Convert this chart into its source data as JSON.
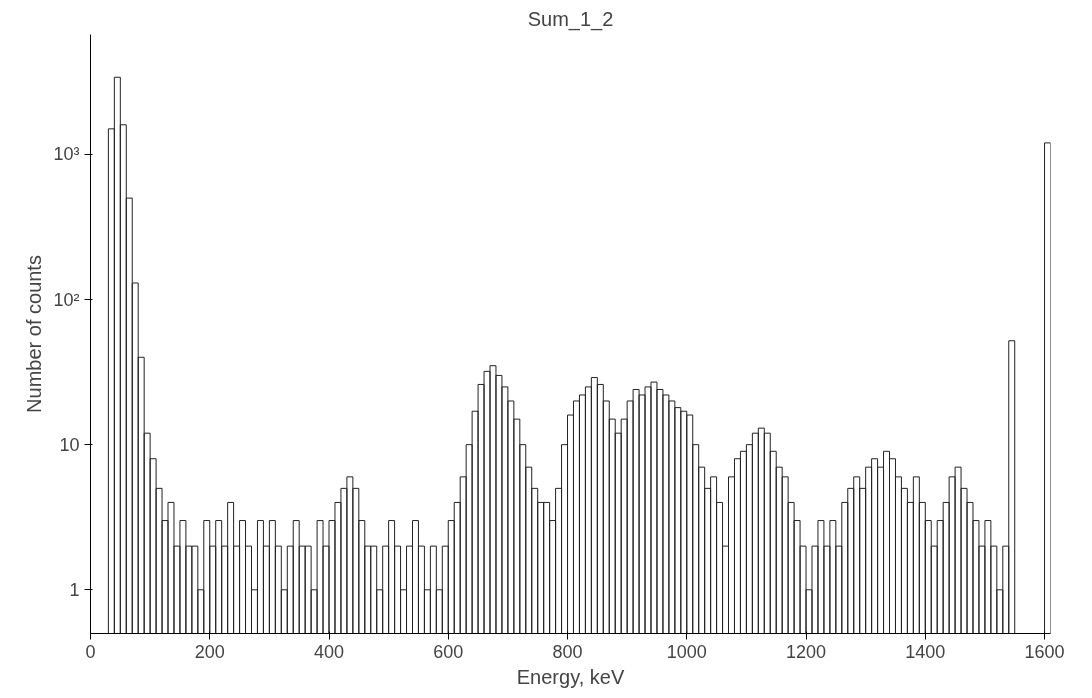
{
  "chart_data": {
    "type": "histogram",
    "title": "Sum_1_2",
    "xlabel": "Energy, keV",
    "ylabel": "Number of counts",
    "color": "#222222",
    "log": "y",
    "grid": false,
    "bins": [
      0,
      10,
      20,
      30,
      40,
      50,
      60,
      70,
      80,
      90,
      100,
      110,
      120,
      130,
      140,
      150,
      160,
      170,
      180,
      190,
      200,
      210,
      220,
      230,
      240,
      250,
      260,
      270,
      280,
      290,
      300,
      310,
      320,
      330,
      340,
      350,
      360,
      370,
      380,
      390,
      400,
      410,
      420,
      430,
      440,
      450,
      460,
      470,
      480,
      490,
      500,
      510,
      520,
      530,
      540,
      550,
      560,
      570,
      580,
      590,
      600,
      610,
      620,
      630,
      640,
      650,
      660,
      670,
      680,
      690,
      700,
      710,
      720,
      730,
      740,
      750,
      760,
      770,
      780,
      790,
      800,
      810,
      820,
      830,
      840,
      850,
      860,
      870,
      880,
      890,
      900,
      910,
      920,
      930,
      940,
      950,
      960,
      970,
      980,
      990,
      1000,
      1010,
      1020,
      1030,
      1040,
      1050,
      1060,
      1070,
      1080,
      1090,
      1100,
      1110,
      1120,
      1130,
      1140,
      1150,
      1160,
      1170,
      1180,
      1190,
      1200,
      1210,
      1220,
      1230,
      1240,
      1250,
      1260,
      1270,
      1280,
      1290,
      1300,
      1310,
      1320,
      1330,
      1340,
      1350,
      1360,
      1370,
      1380,
      1390,
      1400,
      1410,
      1420,
      1430,
      1440,
      1450,
      1460,
      1470,
      1480,
      1490,
      1500,
      1510,
      1520,
      1530,
      1540,
      1550,
      1560,
      1570,
      1580,
      1590,
      1600,
      1610
    ],
    "values": [
      null,
      null,
      null,
      1500,
      3400,
      1600,
      500,
      130,
      40,
      12,
      8,
      5,
      3,
      4,
      2,
      3,
      2,
      2,
      1,
      3,
      2,
      3,
      2,
      4,
      2,
      3,
      2,
      1,
      3,
      2,
      3,
      2,
      1,
      2,
      3,
      2,
      2,
      1,
      3,
      2,
      3,
      4,
      5,
      6,
      5,
      3,
      2,
      2,
      1,
      2,
      3,
      2,
      1,
      2,
      3,
      2,
      1,
      2,
      1,
      2,
      3,
      4,
      6,
      10,
      17,
      26,
      32,
      35,
      30,
      25,
      20,
      15,
      10,
      7,
      5,
      4,
      4,
      3,
      5,
      10,
      16,
      20,
      22,
      25,
      29,
      26,
      20,
      15,
      12,
      15,
      20,
      24,
      22,
      25,
      27,
      24,
      22,
      20,
      18,
      17,
      16,
      10,
      7,
      5,
      6,
      4,
      2,
      6,
      8,
      9,
      10,
      12,
      13,
      12,
      9,
      7,
      6,
      4,
      3,
      2,
      1,
      2,
      3,
      2,
      3,
      2,
      4,
      5,
      6,
      5,
      7,
      8,
      7,
      9,
      8,
      6,
      5,
      4,
      6,
      4,
      3,
      2,
      3,
      4,
      6,
      7,
      5,
      4,
      3,
      2,
      3,
      2,
      1,
      2,
      52,
      null,
      null,
      null,
      null,
      null,
      1200
    ],
    "xlim": [
      0,
      1610
    ],
    "ylim": [
      0.5,
      6700
    ],
    "xticks": [
      0,
      200,
      400,
      600,
      800,
      1000,
      1200,
      1400,
      1600
    ],
    "yticks": [
      {
        "value": 1,
        "label": "1"
      },
      {
        "value": 10,
        "label": "10"
      },
      {
        "value": 100,
        "label": "10²"
      },
      {
        "value": 1000,
        "label": "10³"
      }
    ]
  }
}
